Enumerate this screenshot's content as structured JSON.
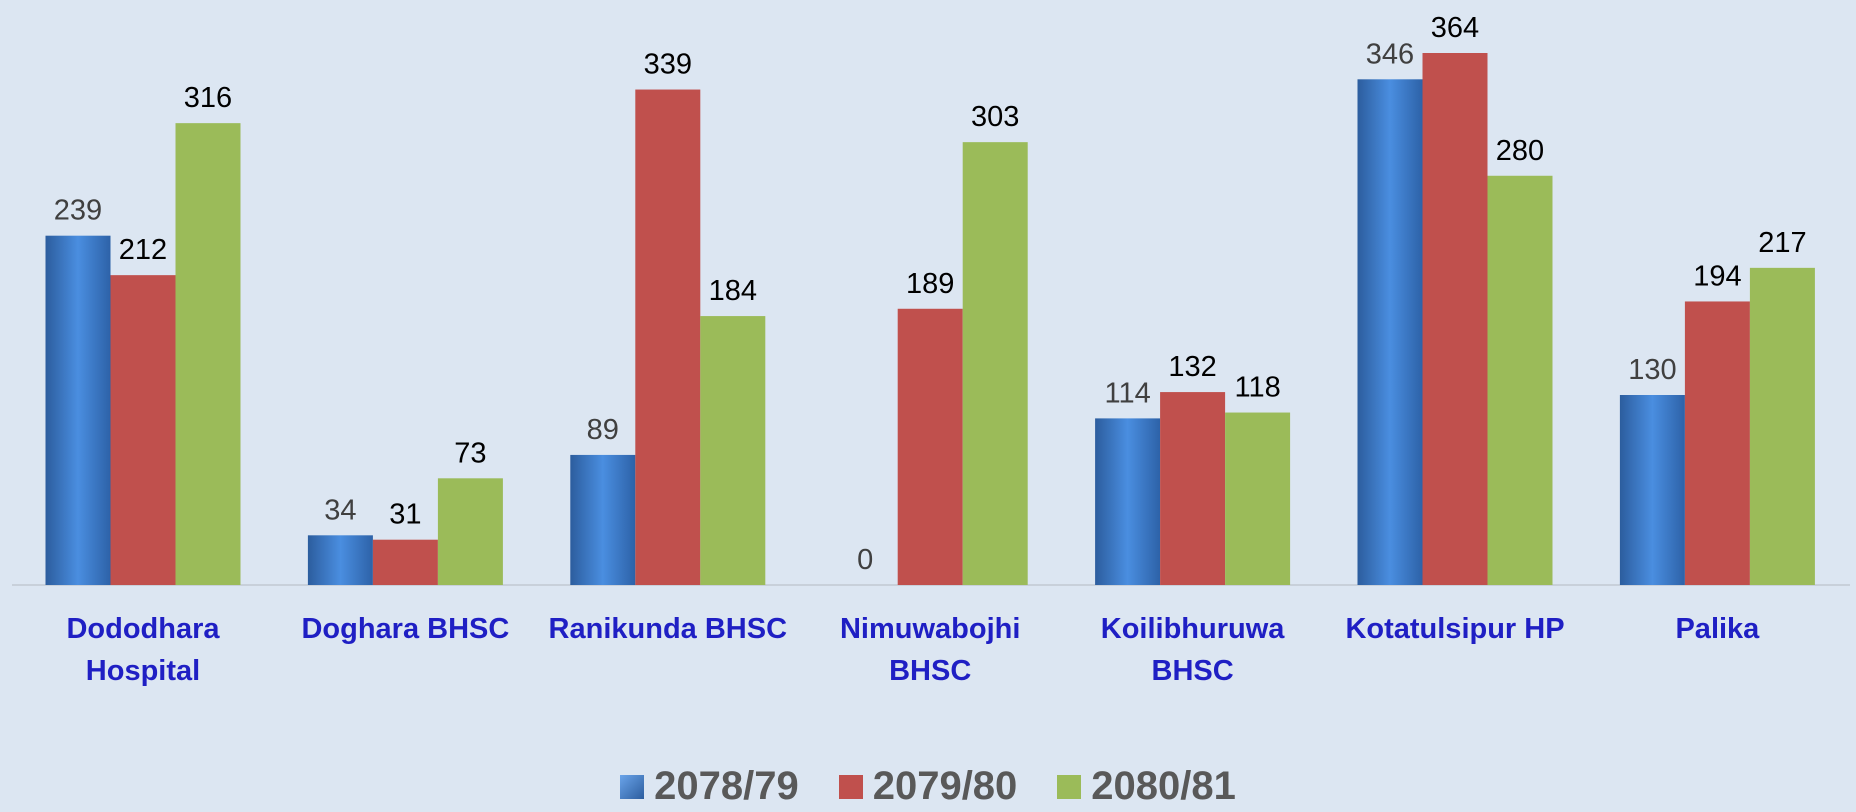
{
  "chart_data": {
    "type": "bar",
    "categories": [
      "Dododhara Hospital",
      "Doghara BHSC",
      "Ranikunda BHSC",
      "Nimuwabojhi BHSC",
      "Koilibhuruwa BHSC",
      "Kotatulsipur HP",
      "Palika"
    ],
    "series": [
      {
        "name": "2078/79",
        "color": "#3c7fd4",
        "values": [
          239,
          34,
          89,
          0,
          114,
          346,
          130
        ]
      },
      {
        "name": "2079/80",
        "color": "#c0504d",
        "values": [
          212,
          31,
          339,
          189,
          132,
          364,
          194
        ]
      },
      {
        "name": "2080/81",
        "color": "#9bbb59",
        "values": [
          316,
          73,
          184,
          303,
          118,
          280,
          217
        ]
      }
    ],
    "legend": "bottom"
  }
}
